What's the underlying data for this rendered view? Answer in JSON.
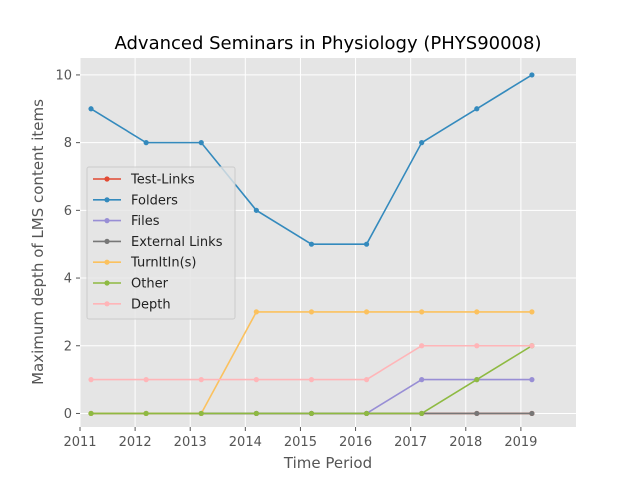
{
  "chart_data": {
    "type": "line",
    "title": "Advanced Seminars in Physiology (PHYS90008)",
    "xlabel": "Time Period",
    "ylabel": "Maximum depth of LMS content items",
    "xlim": [
      2011,
      2020
    ],
    "ylim": [
      -0.4,
      10.5
    ],
    "xticks": [
      2011,
      2012,
      2013,
      2014,
      2015,
      2016,
      2017,
      2018,
      2019
    ],
    "yticks": [
      0,
      2,
      4,
      6,
      8,
      10
    ],
    "grid": true,
    "legend_position": "center-left",
    "x": [
      2011.2,
      2012.2,
      2013.2,
      2014.2,
      2015.2,
      2016.2,
      2017.2,
      2018.2,
      2019.2
    ],
    "series": [
      {
        "name": "Test-Links",
        "color": "#E24A33",
        "values": [
          0,
          0,
          0,
          0,
          0,
          0,
          0,
          0,
          0
        ]
      },
      {
        "name": "Folders",
        "color": "#348ABD",
        "values": [
          9,
          8,
          8,
          6,
          5,
          5,
          8,
          9,
          10
        ]
      },
      {
        "name": "Files",
        "color": "#988ED5",
        "values": [
          0,
          0,
          0,
          0,
          0,
          0,
          1,
          1,
          1
        ]
      },
      {
        "name": "External Links",
        "color": "#777777",
        "values": [
          0,
          0,
          0,
          0,
          0,
          0,
          0,
          0,
          0
        ]
      },
      {
        "name": "TurnItIn(s)",
        "color": "#FBC15E",
        "values": [
          0,
          0,
          0,
          3,
          3,
          3,
          3,
          3,
          3
        ]
      },
      {
        "name": "Other",
        "color": "#8EBA42",
        "values": [
          0,
          0,
          0,
          0,
          0,
          0,
          0,
          1,
          2
        ]
      },
      {
        "name": "Depth",
        "color": "#FFB5B8",
        "values": [
          1,
          1,
          1,
          1,
          1,
          1,
          2,
          2,
          2
        ]
      }
    ]
  }
}
